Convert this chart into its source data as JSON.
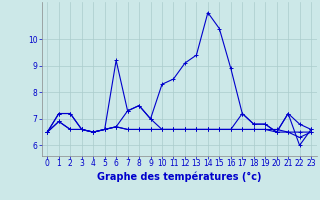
{
  "xlabel": "Graphe des températures (°c)",
  "background_color": "#cce8e8",
  "grid_color": "#aacccc",
  "line_color": "#0000cc",
  "x": [
    0,
    1,
    2,
    3,
    4,
    5,
    6,
    7,
    8,
    9,
    10,
    11,
    12,
    13,
    14,
    15,
    16,
    17,
    18,
    19,
    20,
    21,
    22,
    23
  ],
  "series": [
    [
      6.5,
      7.2,
      7.2,
      6.6,
      6.5,
      6.6,
      9.2,
      7.3,
      7.5,
      7.0,
      8.3,
      8.5,
      9.1,
      9.4,
      11.0,
      10.4,
      8.9,
      7.2,
      6.8,
      6.8,
      6.5,
      7.2,
      6.8,
      6.6
    ],
    [
      6.5,
      6.9,
      6.6,
      6.6,
      6.5,
      6.6,
      6.7,
      6.6,
      6.6,
      6.6,
      6.6,
      6.6,
      6.6,
      6.6,
      6.6,
      6.6,
      6.6,
      6.6,
      6.6,
      6.6,
      6.6,
      6.5,
      6.3,
      6.5
    ],
    [
      6.5,
      7.2,
      7.2,
      6.6,
      6.5,
      6.6,
      6.7,
      7.3,
      7.5,
      7.0,
      6.6,
      6.6,
      6.6,
      6.6,
      6.6,
      6.6,
      6.6,
      6.6,
      6.6,
      6.6,
      6.5,
      6.5,
      6.5,
      6.5
    ],
    [
      6.5,
      6.9,
      6.6,
      6.6,
      6.5,
      6.6,
      6.7,
      6.6,
      6.6,
      6.6,
      6.6,
      6.6,
      6.6,
      6.6,
      6.6,
      6.6,
      6.6,
      7.2,
      6.8,
      6.8,
      6.5,
      7.2,
      6.0,
      6.6
    ]
  ],
  "ylim": [
    5.6,
    11.4
  ],
  "yticks": [
    6,
    7,
    8,
    9,
    10
  ],
  "xticks": [
    0,
    1,
    2,
    3,
    4,
    5,
    6,
    7,
    8,
    9,
    10,
    11,
    12,
    13,
    14,
    15,
    16,
    17,
    18,
    19,
    20,
    21,
    22,
    23
  ],
  "marker": "+",
  "marker_size": 3,
  "linewidth": 0.8,
  "font_color": "#0000cc",
  "tick_fontsize": 5.5,
  "label_fontsize": 7.0
}
